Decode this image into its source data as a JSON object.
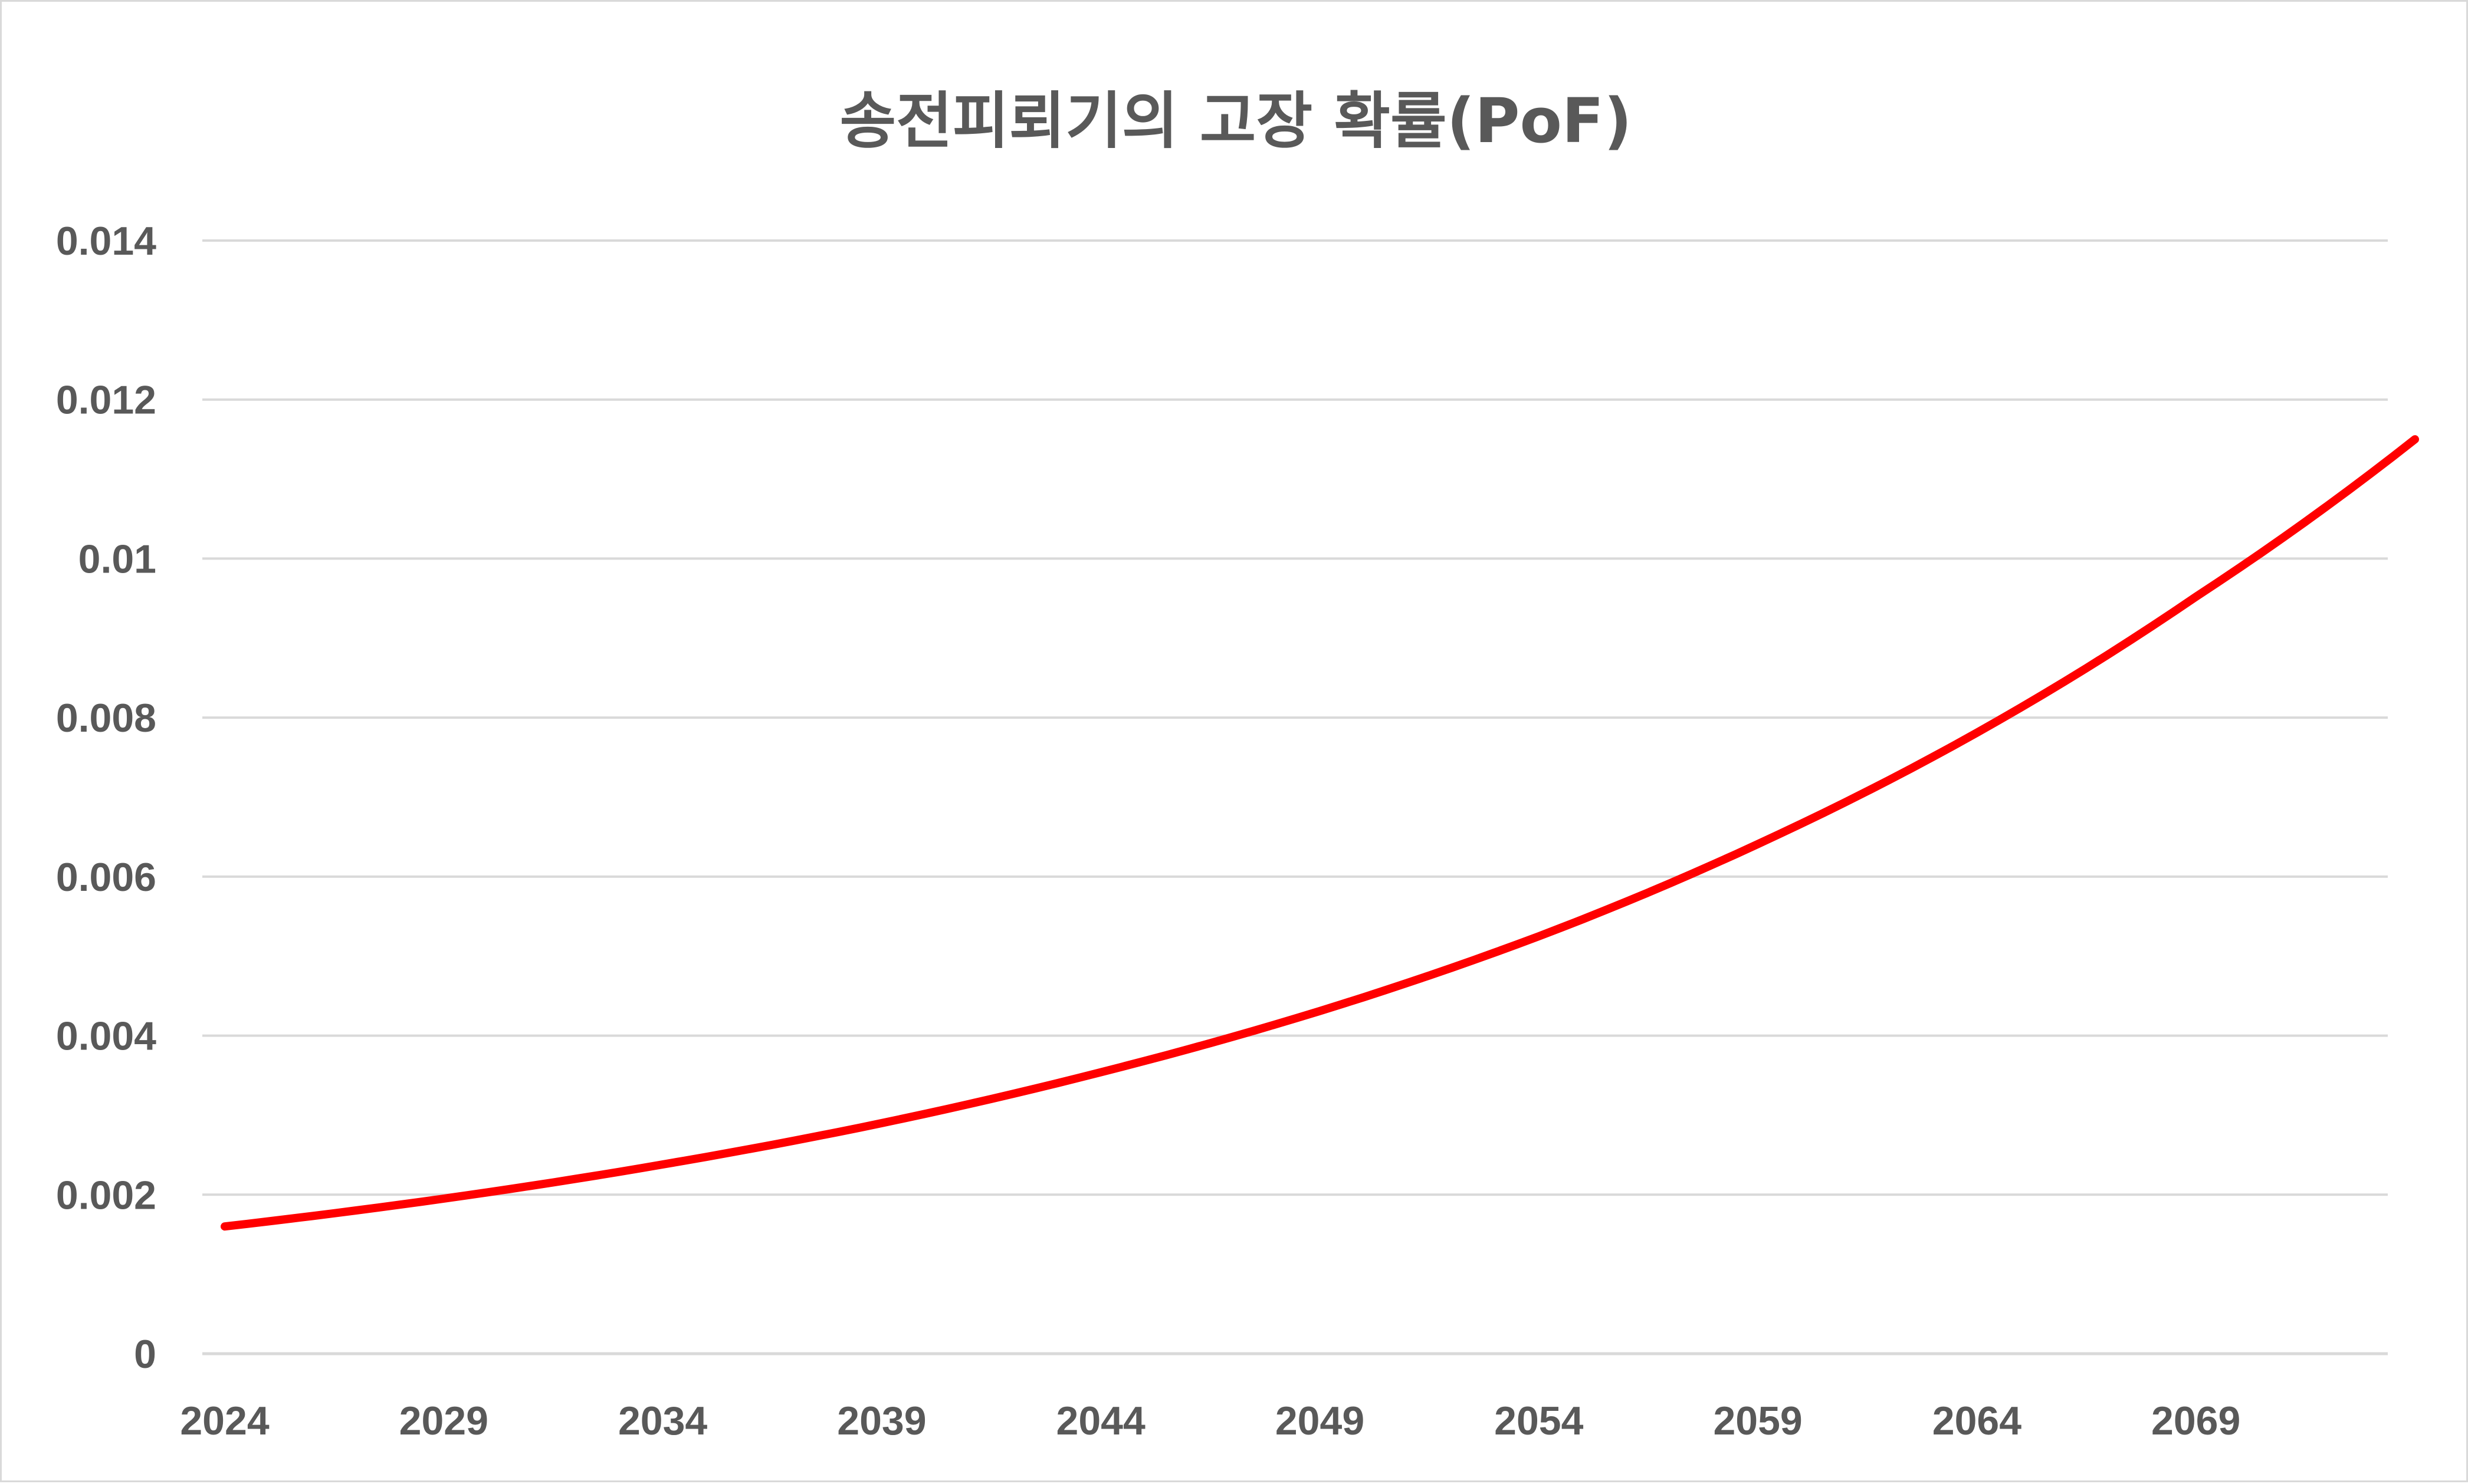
{
  "chart_data": {
    "type": "line",
    "title": "송전피뢰기의 고장 확률(PoF)",
    "xlabel": "",
    "ylabel": "",
    "x_tick_labels": [
      "2024",
      "2029",
      "2034",
      "2039",
      "2044",
      "2049",
      "2054",
      "2059",
      "2064",
      "2069"
    ],
    "y_tick_labels": [
      "0",
      "0.002",
      "0.004",
      "0.006",
      "0.008",
      "0.01",
      "0.012",
      "0.014"
    ],
    "x_range": [
      2024,
      2074
    ],
    "ylim": [
      0,
      0.014
    ],
    "grid": true,
    "legend": "none",
    "colors": {
      "line": "#ff0000",
      "grid": "#d9d9d9",
      "text": "#595959"
    },
    "series": [
      {
        "x": [
          2024,
          2029,
          2034,
          2039,
          2044,
          2049,
          2054,
          2059,
          2064,
          2069,
          2074
        ],
        "values": [
          0.0016,
          0.00195,
          0.00238,
          0.0029,
          0.00354,
          0.00431,
          0.00525,
          0.00641,
          0.00781,
          0.00952,
          0.0115
        ]
      }
    ]
  }
}
